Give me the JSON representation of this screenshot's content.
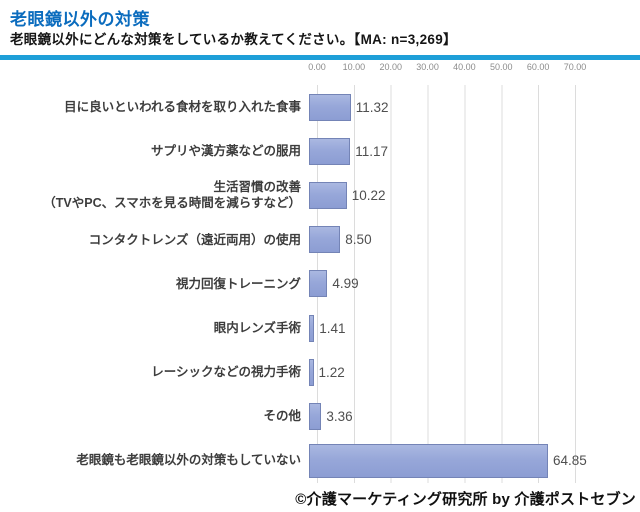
{
  "header": {
    "title": "老眼鏡以外の対策",
    "subtitle": "老眼鏡以外にどんな対策をしているか教えてください。【MA: n=3,269】"
  },
  "footer": {
    "credit": "©介護マーケティング研究所 by 介護ポストセブン"
  },
  "colors": {
    "title_blue": "#0b6cbe",
    "rule_blue": "#1e9fd8",
    "bar_fill": "#97a7d9",
    "bar_border": "#7484b6",
    "gridline": "#dcdcdc",
    "axis_text": "#8c8c8c",
    "category_text": "#3d3d3d",
    "value_text": "#4f4f4f"
  },
  "chart_data": {
    "type": "bar",
    "orientation": "horizontal",
    "title": "老眼鏡以外の対策",
    "subtitle": "老眼鏡以外にどんな対策をしているか教えてください。【MA: n=3,269】",
    "categories": [
      "目に良いといわれる食材を取り入れた食事",
      "サプリや漢方薬などの服用",
      "生活習慣の改善\n（TVやPC、スマホを見る時間を減らすなど）",
      "コンタクトレンズ（遠近両用）の使用",
      "視力回復トレーニング",
      "眼内レンズ手術",
      "レーシックなどの視力手術",
      "その他",
      "老眼鏡も老眼鏡以外の対策もしていない"
    ],
    "values": [
      11.32,
      11.17,
      10.22,
      8.5,
      4.99,
      1.41,
      1.22,
      3.36,
      64.85
    ],
    "value_labels": [
      "11.32",
      "11.17",
      "10.22",
      "8.50",
      "4.99",
      "1.41",
      "1.22",
      "3.36",
      "64.85"
    ],
    "xlim": [
      0,
      70
    ],
    "x_ticks": [
      "0.00",
      "10.00",
      "20.00",
      "30.00",
      "40.00",
      "50.00",
      "60.00",
      "70.00"
    ],
    "grid": true,
    "legend": false,
    "sample_note": "MA: n=3,269"
  }
}
